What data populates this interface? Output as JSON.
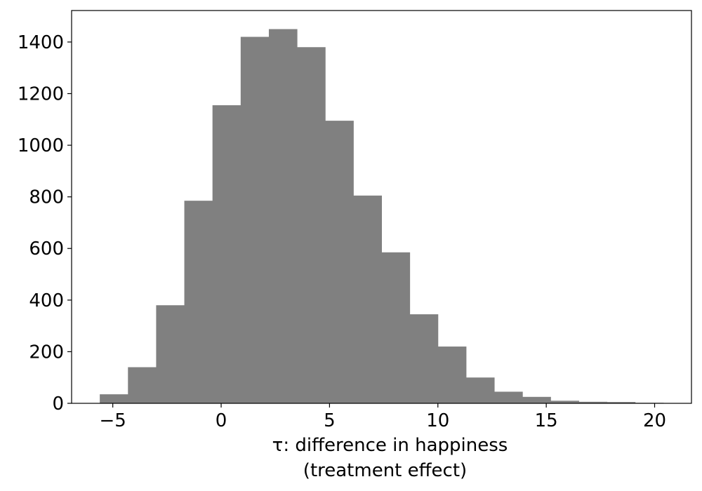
{
  "chart_data": {
    "type": "bar",
    "subtype": "histogram",
    "bar_color": "#808080",
    "bins": [
      {
        "x0": -5.6,
        "x1": -4.3,
        "count": 35
      },
      {
        "x0": -4.3,
        "x1": -3.0,
        "count": 140
      },
      {
        "x0": -3.0,
        "x1": -1.7,
        "count": 380
      },
      {
        "x0": -1.7,
        "x1": -0.4,
        "count": 785
      },
      {
        "x0": -0.4,
        "x1": 0.9,
        "count": 1155
      },
      {
        "x0": 0.9,
        "x1": 2.2,
        "count": 1420
      },
      {
        "x0": 2.2,
        "x1": 3.5,
        "count": 1450
      },
      {
        "x0": 3.5,
        "x1": 4.8,
        "count": 1380
      },
      {
        "x0": 4.8,
        "x1": 6.1,
        "count": 1095
      },
      {
        "x0": 6.1,
        "x1": 7.4,
        "count": 805
      },
      {
        "x0": 7.4,
        "x1": 8.7,
        "count": 585
      },
      {
        "x0": 8.7,
        "x1": 10.0,
        "count": 345
      },
      {
        "x0": 10.0,
        "x1": 11.3,
        "count": 220
      },
      {
        "x0": 11.3,
        "x1": 12.6,
        "count": 100
      },
      {
        "x0": 12.6,
        "x1": 13.9,
        "count": 45
      },
      {
        "x0": 13.9,
        "x1": 15.2,
        "count": 25
      },
      {
        "x0": 15.2,
        "x1": 16.5,
        "count": 10
      },
      {
        "x0": 16.5,
        "x1": 17.8,
        "count": 6
      },
      {
        "x0": 17.8,
        "x1": 19.1,
        "count": 5
      },
      {
        "x0": 19.1,
        "x1": 20.4,
        "count": 2
      }
    ],
    "xlabel_line1": "τ: difference in happiness",
    "xlabel_line2": "(treatment effect)",
    "ylabel": "",
    "xlim": [
      -6.9,
      21.7
    ],
    "ylim": [
      0,
      1522
    ],
    "xticks": [
      {
        "value": -5,
        "label": "−5"
      },
      {
        "value": 0,
        "label": "0"
      },
      {
        "value": 5,
        "label": "5"
      },
      {
        "value": 10,
        "label": "10"
      },
      {
        "value": 15,
        "label": "15"
      },
      {
        "value": 20,
        "label": "20"
      }
    ],
    "yticks": [
      {
        "value": 0,
        "label": "0"
      },
      {
        "value": 200,
        "label": "200"
      },
      {
        "value": 400,
        "label": "400"
      },
      {
        "value": 600,
        "label": "600"
      },
      {
        "value": 800,
        "label": "800"
      },
      {
        "value": 1000,
        "label": "1000"
      },
      {
        "value": 1200,
        "label": "1200"
      },
      {
        "value": 1400,
        "label": "1400"
      }
    ],
    "grid": false,
    "legend": "none"
  }
}
